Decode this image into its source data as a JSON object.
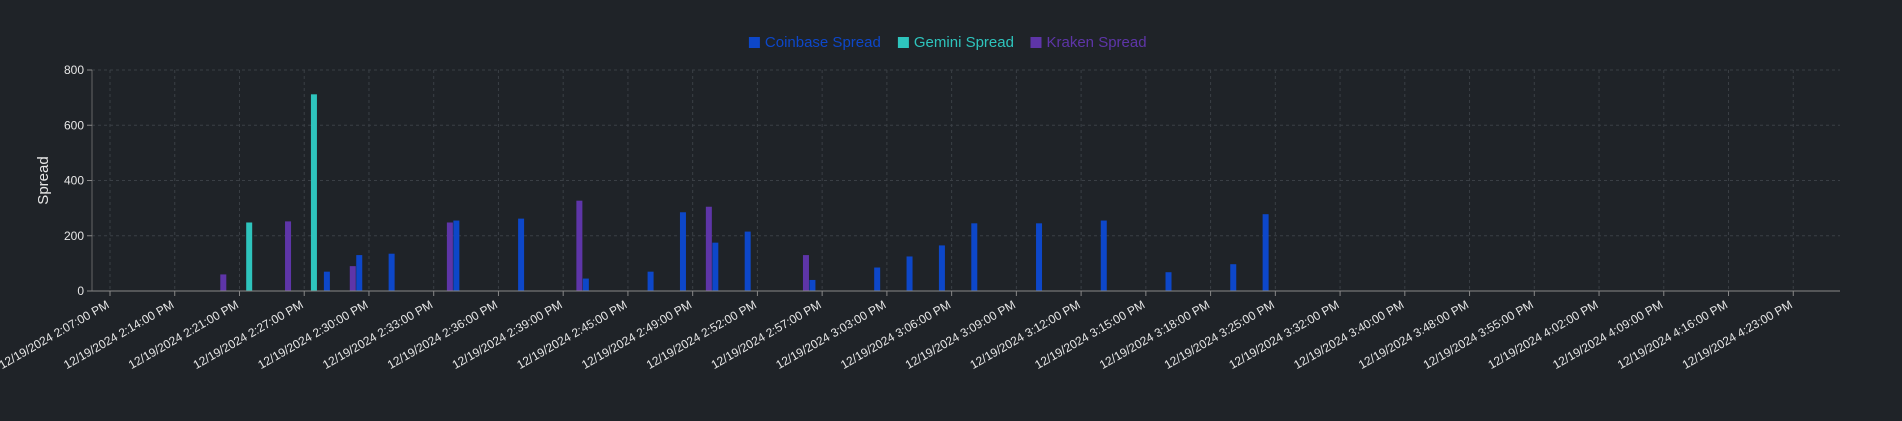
{
  "chart_data": {
    "type": "bar",
    "ylabel": "Spread",
    "ylim": [
      0,
      800
    ],
    "yticks": [
      0,
      200,
      400,
      600,
      800
    ],
    "grid": true,
    "legend_position": "top-center",
    "xtick_labels": [
      "12/19/2024 2:07:00 PM",
      "12/19/2024 2:14:00 PM",
      "12/19/2024 2:21:00 PM",
      "12/19/2024 2:27:00 PM",
      "12/19/2024 2:30:00 PM",
      "12/19/2024 2:33:00 PM",
      "12/19/2024 2:36:00 PM",
      "12/19/2024 2:39:00 PM",
      "12/19/2024 2:45:00 PM",
      "12/19/2024 2:49:00 PM",
      "12/19/2024 2:52:00 PM",
      "12/19/2024 2:57:00 PM",
      "12/19/2024 3:03:00 PM",
      "12/19/2024 3:06:00 PM",
      "12/19/2024 3:09:00 PM",
      "12/19/2024 3:12:00 PM",
      "12/19/2024 3:15:00 PM",
      "12/19/2024 3:18:00 PM",
      "12/19/2024 3:25:00 PM",
      "12/19/2024 3:32:00 PM",
      "12/19/2024 3:40:00 PM",
      "12/19/2024 3:48:00 PM",
      "12/19/2024 3:55:00 PM",
      "12/19/2024 4:02:00 PM",
      "12/19/2024 4:09:00 PM",
      "12/19/2024 4:16:00 PM",
      "12/19/2024 4:23:00 PM"
    ],
    "series": [
      {
        "name": "Coinbase Spread",
        "color": "#0d47c9",
        "points": [
          {
            "x": 3.35,
            "y": 70
          },
          {
            "x": 3.85,
            "y": 130
          },
          {
            "x": 4.35,
            "y": 135
          },
          {
            "x": 5.35,
            "y": 255
          },
          {
            "x": 6.35,
            "y": 262
          },
          {
            "x": 7.35,
            "y": 45
          },
          {
            "x": 8.35,
            "y": 70
          },
          {
            "x": 8.85,
            "y": 285
          },
          {
            "x": 9.35,
            "y": 175
          },
          {
            "x": 9.85,
            "y": 215
          },
          {
            "x": 10.85,
            "y": 40
          },
          {
            "x": 11.85,
            "y": 85
          },
          {
            "x": 12.35,
            "y": 125
          },
          {
            "x": 12.85,
            "y": 165
          },
          {
            "x": 13.35,
            "y": 245
          },
          {
            "x": 14.35,
            "y": 245
          },
          {
            "x": 15.35,
            "y": 255
          },
          {
            "x": 16.35,
            "y": 68
          },
          {
            "x": 17.35,
            "y": 97
          },
          {
            "x": 17.85,
            "y": 278
          }
        ]
      },
      {
        "name": "Gemini Spread",
        "color": "#2ec4bd",
        "points": [
          {
            "x": 2.15,
            "y": 248
          },
          {
            "x": 3.15,
            "y": 712
          }
        ]
      },
      {
        "name": "Kraken Spread",
        "color": "#5e35a8",
        "points": [
          {
            "x": 1.75,
            "y": 60
          },
          {
            "x": 2.75,
            "y": 252
          },
          {
            "x": 3.75,
            "y": 90
          },
          {
            "x": 5.25,
            "y": 248
          },
          {
            "x": 7.25,
            "y": 327
          },
          {
            "x": 9.25,
            "y": 305
          },
          {
            "x": 10.75,
            "y": 130
          }
        ]
      }
    ]
  }
}
